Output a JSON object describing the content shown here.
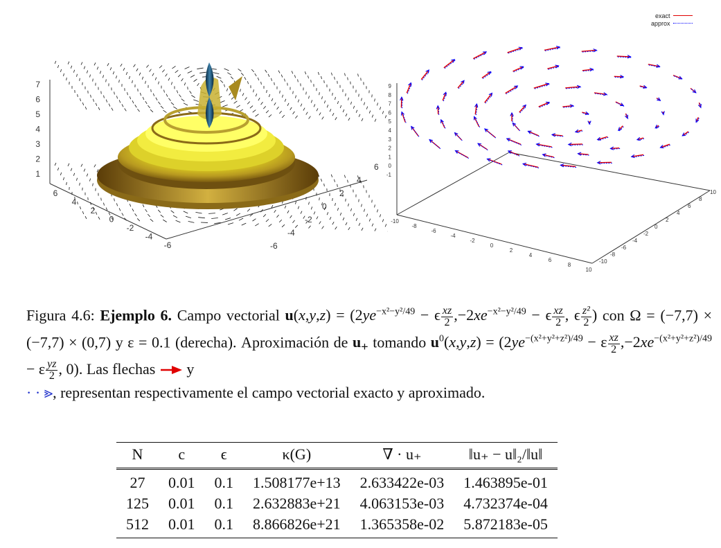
{
  "figure": {
    "left_plot": {
      "z_ticks": [
        "1",
        "2",
        "3",
        "4",
        "5",
        "6",
        "7"
      ],
      "x_ticks": [
        "6",
        "4",
        "2",
        "0",
        "-2",
        "-4",
        "-6"
      ],
      "y_ticks": [
        "6",
        "4",
        "2",
        "0",
        "-2",
        "-4",
        "-6"
      ]
    },
    "right_plot": {
      "legend": {
        "exact": "exact",
        "approx": "approx"
      },
      "exact_color": "#e00000",
      "approx_color": "#0000ff",
      "z_ticks": [
        "-1",
        "0",
        "1",
        "2",
        "3",
        "4",
        "5",
        "6",
        "7",
        "8",
        "9"
      ],
      "x_ticks": [
        "-10",
        "-8",
        "-6",
        "-4",
        "-2",
        "0",
        "2",
        "4",
        "6",
        "8",
        "10"
      ],
      "y_ticks": [
        "-10",
        "-8",
        "-6",
        "-4",
        "-2",
        "0",
        "2",
        "4",
        "6",
        "8",
        "10"
      ]
    }
  },
  "caption": {
    "label": "Figura 4.6:",
    "title": "Ejemplo 6.",
    "t1": "Campo vectorial",
    "t2": "con Ω = (−7,7) × (−7,7) × (0,7) y ε = 0.1 (derecha). Aproximación de",
    "t3": "tomando",
    "t4": ". Las flechas",
    "t5": "y",
    "t6": ", representan respectivamente el campo vectorial exacto y aproximado."
  },
  "table": {
    "headers": [
      "N",
      "c",
      "ϵ",
      "κ(G)",
      "∇ · u₊",
      "‖u₊ − u‖₂/‖u‖"
    ],
    "rows": [
      [
        "27",
        "0.01",
        "0.1",
        "1.508177e+13",
        "2.633422e-03",
        "1.463895e-01"
      ],
      [
        "125",
        "0.01",
        "0.1",
        "2.632883e+21",
        "4.063153e-03",
        "4.732374e-04"
      ],
      [
        "512",
        "0.01",
        "0.1",
        "8.866826e+21",
        "1.365358e-02",
        "5.872183e-05"
      ]
    ]
  }
}
